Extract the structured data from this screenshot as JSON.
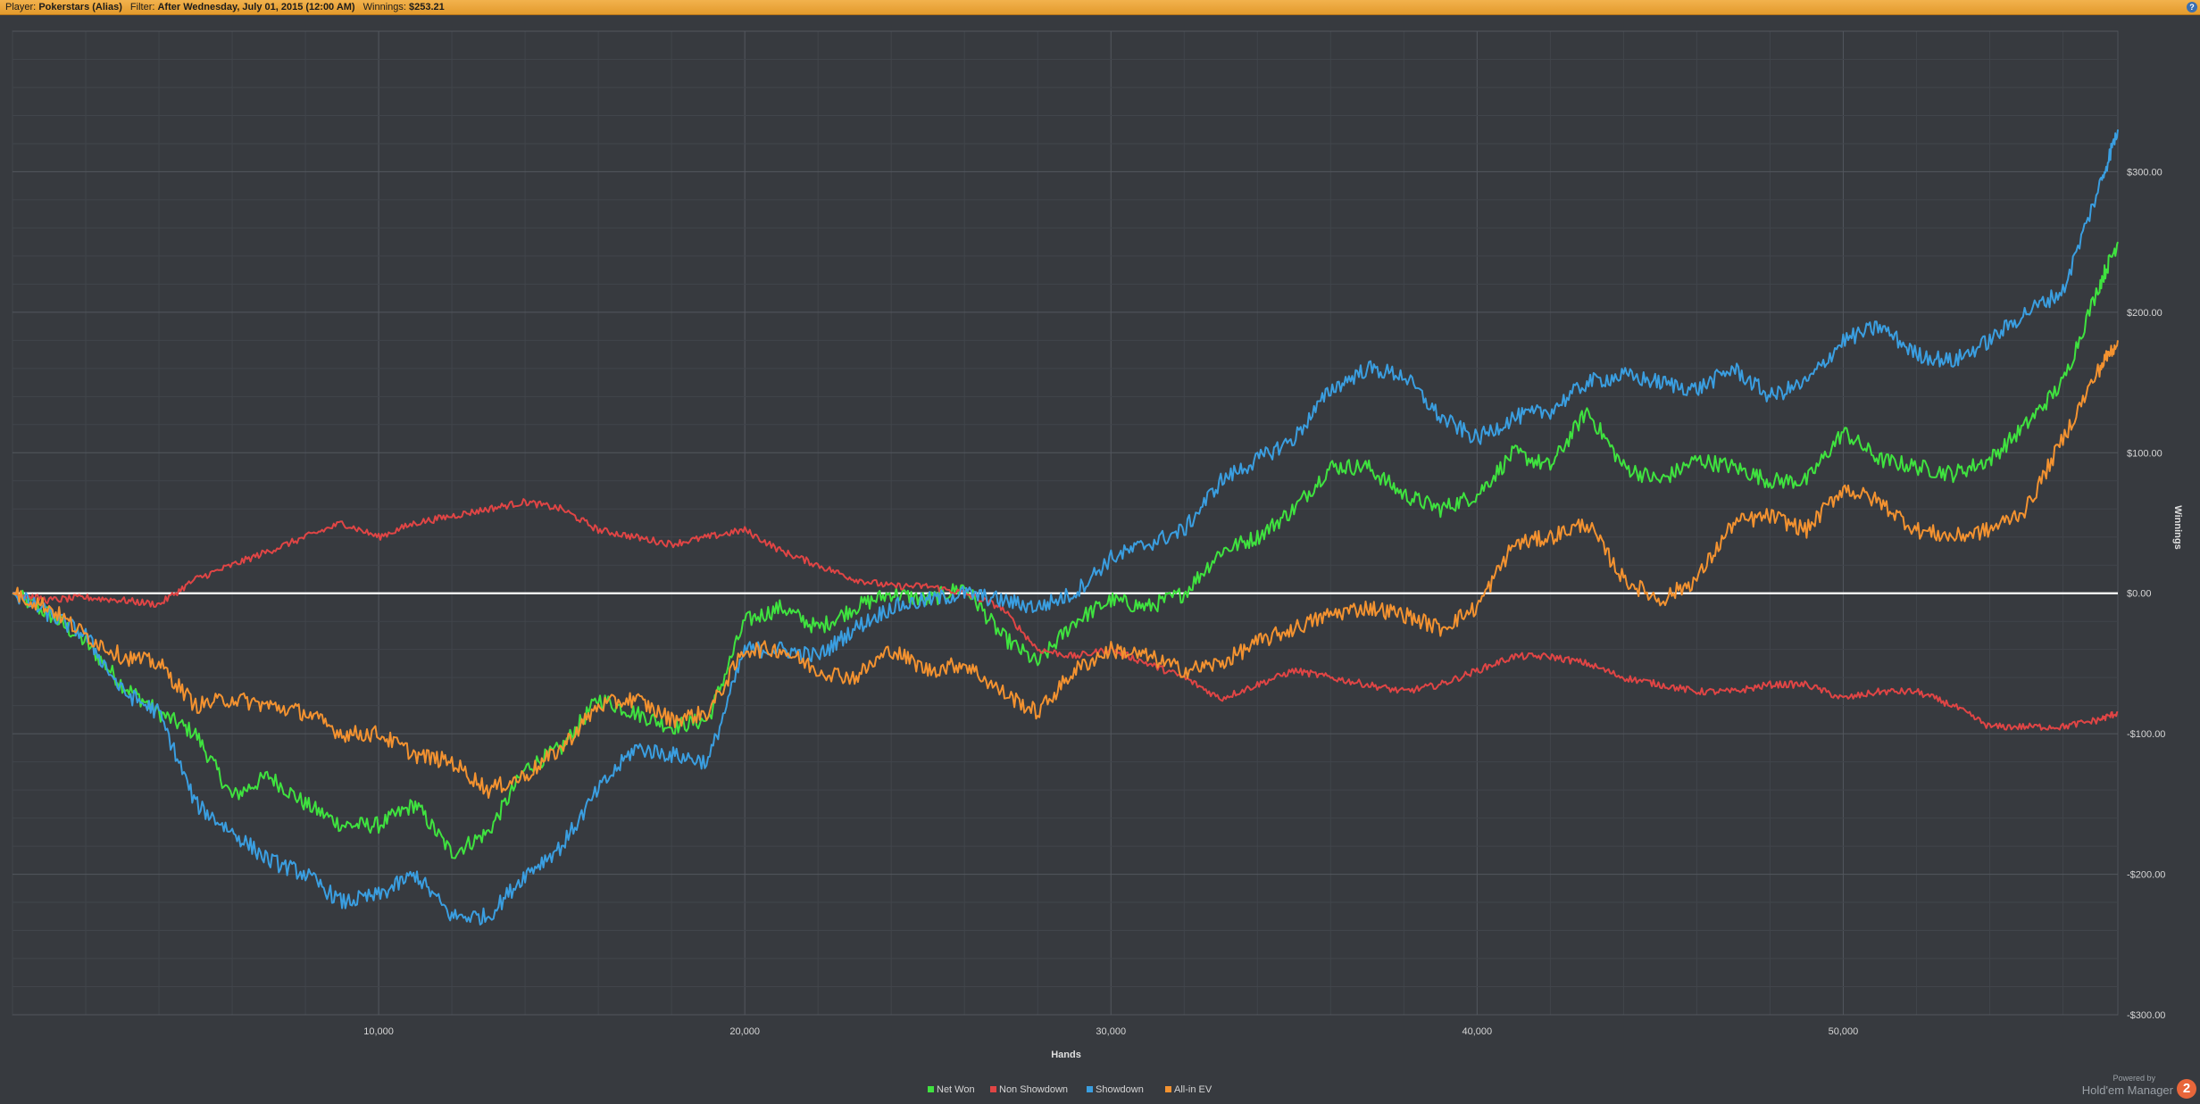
{
  "header": {
    "player_label": "Player:",
    "player_value": "Pokerstars (Alias)",
    "filter_label": "Filter:",
    "filter_value": "After Wednesday, July 01, 2015 (12:00 AM)",
    "winnings_label": "Winnings:",
    "winnings_value": "$253.21",
    "help_glyph": "?"
  },
  "brand": {
    "powered_by": "Powered by",
    "name": "Hold'em Manager",
    "badge": "2"
  },
  "chart_data": {
    "type": "line",
    "title": "",
    "xlabel": "Hands",
    "ylabel": "Winnings",
    "xlim": [
      0,
      57500
    ],
    "ylim": [
      -300,
      400
    ],
    "x_ticks": [
      10000,
      20000,
      30000,
      40000,
      50000
    ],
    "x_tick_labels": [
      "10,000",
      "20,000",
      "30,000",
      "40,000",
      "50,000"
    ],
    "y_ticks": [
      300,
      200,
      100,
      0,
      -100,
      -200,
      -300
    ],
    "y_tick_labels": [
      "$300.00",
      "$200.00",
      "$100.00",
      "$0.00",
      "-$100.00",
      "-$200.00",
      "-$300.00"
    ],
    "grid": true,
    "zero_line": true,
    "legend_position": "bottom-center",
    "series": [
      {
        "name": "Net Won",
        "color": "#3fe23f",
        "x": [
          0,
          1000,
          2000,
          3000,
          4000,
          5000,
          6000,
          7000,
          8000,
          9000,
          10000,
          11000,
          12000,
          13000,
          14000,
          15000,
          16000,
          17000,
          18000,
          19000,
          20000,
          21000,
          22000,
          23000,
          24000,
          25000,
          26000,
          27000,
          28000,
          29000,
          30000,
          31000,
          32000,
          33000,
          34000,
          35000,
          36000,
          37000,
          38000,
          39000,
          40000,
          41000,
          42000,
          43000,
          44000,
          45000,
          46000,
          47000,
          48000,
          49000,
          50000,
          51000,
          52000,
          53000,
          54000,
          55000,
          56000,
          57000,
          57500
        ],
        "values": [
          0,
          -15,
          -35,
          -65,
          -85,
          -100,
          -145,
          -130,
          -150,
          -165,
          -165,
          -150,
          -185,
          -170,
          -125,
          -110,
          -75,
          -85,
          -95,
          -90,
          -20,
          -10,
          -25,
          -10,
          0,
          -5,
          5,
          -30,
          -50,
          -20,
          -5,
          -10,
          0,
          30,
          40,
          60,
          90,
          90,
          70,
          60,
          70,
          100,
          90,
          130,
          90,
          80,
          95,
          90,
          80,
          80,
          115,
          95,
          90,
          85,
          95,
          120,
          150,
          220,
          250
        ]
      },
      {
        "name": "Non Showdown",
        "color": "#e04545",
        "x": [
          0,
          1000,
          2000,
          3000,
          4000,
          5000,
          6000,
          7000,
          8000,
          9000,
          10000,
          11000,
          12000,
          13000,
          14000,
          15000,
          16000,
          17000,
          18000,
          19000,
          20000,
          21000,
          22000,
          23000,
          24000,
          25000,
          26000,
          27000,
          28000,
          29000,
          30000,
          31000,
          32000,
          33000,
          34000,
          35000,
          36000,
          37000,
          38000,
          39000,
          40000,
          41000,
          42000,
          43000,
          44000,
          45000,
          46000,
          47000,
          48000,
          49000,
          50000,
          51000,
          52000,
          53000,
          54000,
          55000,
          56000,
          57000,
          57500
        ],
        "values": [
          0,
          -5,
          -3,
          -5,
          -8,
          10,
          20,
          30,
          40,
          50,
          40,
          50,
          55,
          60,
          65,
          60,
          45,
          40,
          35,
          40,
          45,
          30,
          20,
          10,
          5,
          5,
          0,
          -10,
          -40,
          -45,
          -40,
          -50,
          -60,
          -75,
          -65,
          -55,
          -60,
          -65,
          -70,
          -65,
          -55,
          -45,
          -45,
          -50,
          -60,
          -65,
          -70,
          -70,
          -65,
          -65,
          -75,
          -70,
          -70,
          -80,
          -95,
          -95,
          -95,
          -90,
          -85
        ]
      },
      {
        "name": "Showdown",
        "color": "#3a9ee0",
        "x": [
          0,
          1000,
          2000,
          3000,
          4000,
          5000,
          6000,
          7000,
          8000,
          9000,
          10000,
          11000,
          12000,
          13000,
          14000,
          15000,
          16000,
          17000,
          18000,
          19000,
          20000,
          21000,
          22000,
          23000,
          24000,
          25000,
          26000,
          27000,
          28000,
          29000,
          30000,
          31000,
          32000,
          33000,
          34000,
          35000,
          36000,
          37000,
          38000,
          39000,
          40000,
          41000,
          42000,
          43000,
          44000,
          45000,
          46000,
          47000,
          48000,
          49000,
          50000,
          51000,
          52000,
          53000,
          54000,
          55000,
          56000,
          57000,
          57500
        ],
        "values": [
          0,
          -15,
          -30,
          -70,
          -85,
          -150,
          -170,
          -190,
          -200,
          -220,
          -215,
          -200,
          -230,
          -230,
          -200,
          -180,
          -140,
          -110,
          -115,
          -120,
          -40,
          -40,
          -45,
          -25,
          -10,
          -5,
          0,
          -5,
          -10,
          0,
          25,
          35,
          45,
          80,
          95,
          110,
          145,
          160,
          155,
          125,
          110,
          125,
          130,
          150,
          155,
          150,
          145,
          160,
          140,
          150,
          180,
          190,
          170,
          165,
          180,
          200,
          215,
          290,
          330
        ]
      },
      {
        "name": "All-in EV",
        "color": "#f39230",
        "x": [
          0,
          1000,
          2000,
          3000,
          4000,
          5000,
          6000,
          7000,
          8000,
          9000,
          10000,
          11000,
          12000,
          13000,
          14000,
          15000,
          16000,
          17000,
          18000,
          19000,
          20000,
          21000,
          22000,
          23000,
          24000,
          25000,
          26000,
          27000,
          28000,
          29000,
          30000,
          31000,
          32000,
          33000,
          34000,
          35000,
          36000,
          37000,
          38000,
          39000,
          40000,
          41000,
          42000,
          43000,
          44000,
          45000,
          46000,
          47000,
          48000,
          49000,
          50000,
          51000,
          52000,
          53000,
          54000,
          55000,
          56000,
          57000,
          57500
        ],
        "values": [
          0,
          -10,
          -30,
          -45,
          -50,
          -80,
          -75,
          -80,
          -85,
          -100,
          -100,
          -115,
          -120,
          -140,
          -130,
          -110,
          -80,
          -75,
          -90,
          -85,
          -40,
          -40,
          -55,
          -60,
          -40,
          -55,
          -50,
          -70,
          -85,
          -55,
          -40,
          -45,
          -55,
          -50,
          -35,
          -25,
          -15,
          -10,
          -15,
          -25,
          -10,
          35,
          40,
          50,
          10,
          -5,
          10,
          50,
          55,
          45,
          75,
          65,
          45,
          40,
          45,
          60,
          110,
          160,
          180
        ]
      }
    ]
  }
}
